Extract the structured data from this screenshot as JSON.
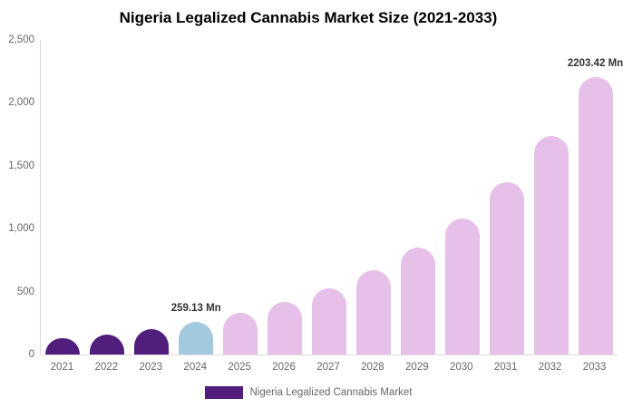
{
  "title": "Nigeria Legalized Cannabis Market Size (2021-2033)",
  "colors": {
    "purple": "#521E7D",
    "blue": "#A3C9DE",
    "pink": "#E6C0E9",
    "axis_line": "#dddddd",
    "tick_text": "#666666",
    "data_label_text": "#333333"
  },
  "y_axis": {
    "tick_labels": [
      "0",
      "500",
      "1,000",
      "1,500",
      "2,000",
      "2,500"
    ],
    "tick_values": [
      0,
      500,
      1000,
      1500,
      2000,
      2500
    ]
  },
  "legend": {
    "label": "Nigeria Legalized Cannabis Market",
    "swatch_color": "#521E7D"
  },
  "chart_data": {
    "type": "bar",
    "title": "Nigeria Legalized Cannabis Market Size (2021-2033)",
    "xlabel": "",
    "ylabel": "",
    "unit": "Mn",
    "ylim": [
      0,
      2500
    ],
    "grid": false,
    "legend_position": "bottom",
    "categories": [
      "2021",
      "2022",
      "2023",
      "2024",
      "2025",
      "2026",
      "2027",
      "2028",
      "2029",
      "2030",
      "2031",
      "2032",
      "2033"
    ],
    "values": [
      127,
      161,
      204,
      259.13,
      329,
      417,
      529,
      671,
      851,
      1080,
      1369,
      1737,
      2203.42
    ],
    "bar_colors": [
      "#521E7D",
      "#521E7D",
      "#521E7D",
      "#A3C9DE",
      "#E6C0E9",
      "#E6C0E9",
      "#E6C0E9",
      "#E6C0E9",
      "#E6C0E9",
      "#E6C0E9",
      "#E6C0E9",
      "#E6C0E9",
      "#E6C0E9"
    ],
    "data_labels": [
      "",
      "",
      "",
      "259.13 Mn",
      "",
      "",
      "",
      "",
      "",
      "",
      "",
      "",
      "2203.42 Mn"
    ],
    "series_name": "Nigeria Legalized Cannabis Market"
  }
}
